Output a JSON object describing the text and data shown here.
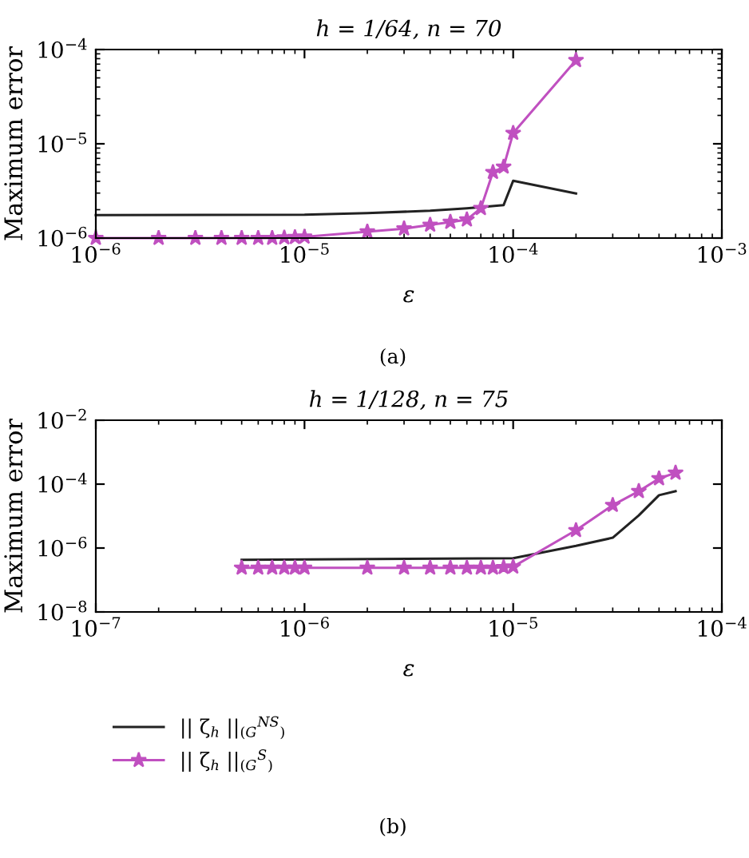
{
  "chart_data": [
    {
      "type": "line",
      "title": "h = 1/64, n = 70",
      "xlabel": "ε",
      "ylabel": "Maximum error",
      "log": "xy",
      "grid": false,
      "legend": false,
      "xlim": [
        1e-06,
        0.001
      ],
      "ylim": [
        1e-06,
        0.0001
      ],
      "xticks": [
        {
          "value": 1e-06,
          "label": "10$^{−6}$"
        },
        {
          "value": 1e-05,
          "label": "10$^{−5}$"
        },
        {
          "value": 0.0001,
          "label": "10$^{−4}$"
        },
        {
          "value": 0.001,
          "label": "10$^{−3}$"
        }
      ],
      "yticks": [
        {
          "value": 1e-06,
          "label": "10$^{−6}$"
        },
        {
          "value": 1e-05,
          "label": "10$^{−5}$"
        },
        {
          "value": 0.0001,
          "label": "10$^{−4}$"
        }
      ],
      "series": [
        {
          "color": "#222222",
          "marker": "none",
          "x": [
            1e-06,
            1e-05,
            2e-05,
            4e-05,
            6e-05,
            9e-05,
            0.0001,
            0.0002
          ],
          "values": [
            1.75e-06,
            1.77e-06,
            1.84e-06,
            1.95e-06,
            2.07e-06,
            2.24e-06,
            4.06e-06,
            2.97e-06
          ]
        },
        {
          "color": "#c050c0",
          "marker": "star",
          "x": [
            1e-06,
            2e-06,
            3e-06,
            4e-06,
            5e-06,
            6e-06,
            7e-06,
            8e-06,
            9e-06,
            1e-05,
            2e-05,
            3e-05,
            4e-05,
            5e-05,
            6e-05,
            7e-05,
            8e-05,
            9e-05,
            0.0001,
            0.0002
          ],
          "values": [
            1e-06,
            1e-06,
            1e-06,
            1e-06,
            1e-06,
            1e-06,
            1e-06,
            1.01e-06,
            1.02e-06,
            1.03e-06,
            1.17e-06,
            1.26e-06,
            1.38e-06,
            1.48e-06,
            1.57e-06,
            2.07e-06,
            5e-06,
            5.7e-06,
            1.3e-05,
            7.7e-05
          ]
        }
      ],
      "annotations": [
        "(a)"
      ]
    },
    {
      "type": "line",
      "title": "h = 1/128, n = 75",
      "xlabel": "ε",
      "ylabel": "Maximum error",
      "log": "xy",
      "grid": false,
      "legend": "bottom",
      "xlim": [
        1e-07,
        0.0001
      ],
      "ylim": [
        1e-08,
        0.01
      ],
      "xticks": [
        {
          "value": 1e-07,
          "label": "10$^{−7}$"
        },
        {
          "value": 1e-06,
          "label": "10$^{−6}$"
        },
        {
          "value": 1e-05,
          "label": "10$^{−5}$"
        },
        {
          "value": 0.0001,
          "label": "10$^{−4}$"
        }
      ],
      "yticks": [
        {
          "value": 1e-08,
          "label": "10$^{−8}$"
        },
        {
          "value": 1e-06,
          "label": "10$^{−6}$"
        },
        {
          "value": 0.0001,
          "label": "10$^{−4}$"
        },
        {
          "value": 0.01,
          "label": "10$^{−2}$"
        }
      ],
      "series": [
        {
          "name": "|| ζ$_{h}$ ||$_{(G}$$^{NS}$$_{)}$",
          "color": "#222222",
          "marker": "none",
          "x": [
            5e-07,
            1e-05,
            2e-05,
            3e-05,
            4e-05,
            5e-05,
            6e-05
          ],
          "values": [
            4.3e-07,
            4.8e-07,
            1.17e-06,
            2.1e-06,
            1.05e-05,
            4.5e-05,
            6e-05
          ]
        },
        {
          "name": "|| ζ$_{h}$ ||$_{(G}$$^{S}$$_{)}$",
          "color": "#c050c0",
          "marker": "star",
          "x": [
            5e-07,
            6e-07,
            7e-07,
            8e-07,
            9e-07,
            1e-06,
            2e-06,
            3e-06,
            4e-06,
            5e-06,
            6e-06,
            7e-06,
            8e-06,
            9e-06,
            1e-05,
            2e-05,
            3e-05,
            4e-05,
            5e-05,
            6e-05
          ],
          "values": [
            2.4e-07,
            2.4e-07,
            2.4e-07,
            2.4e-07,
            2.4e-07,
            2.4e-07,
            2.4e-07,
            2.4e-07,
            2.4e-07,
            2.4e-07,
            2.4e-07,
            2.4e-07,
            2.4e-07,
            2.5e-07,
            2.6e-07,
            3.6e-06,
            2.2e-05,
            6e-05,
            0.00015,
            0.000225
          ]
        }
      ],
      "annotations": [
        "(b)"
      ]
    }
  ]
}
